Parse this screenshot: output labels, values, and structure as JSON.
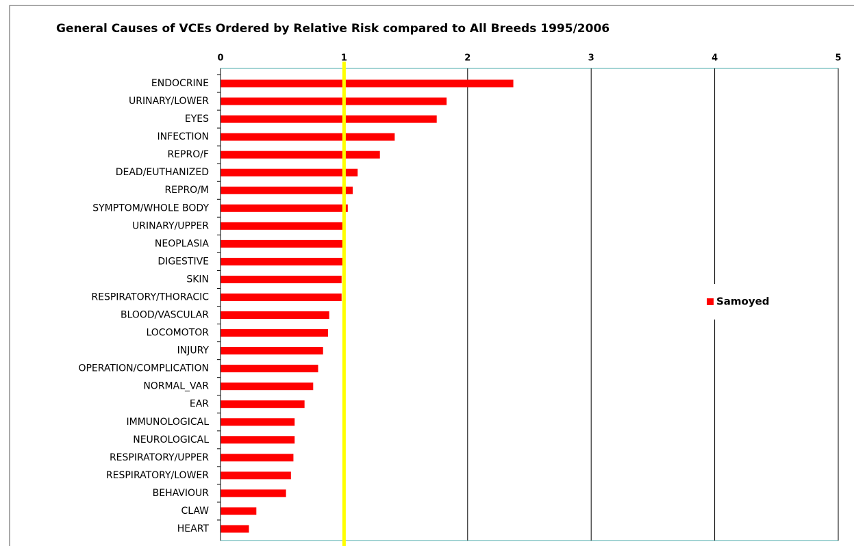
{
  "chart_data": {
    "type": "bar",
    "orientation": "horizontal",
    "title": "General Causes of VCEs Ordered by Relative Risk compared to All Breeds 1995/2006",
    "categories": [
      "ENDOCRINE",
      "URINARY/LOWER",
      "EYES",
      "INFECTION",
      "REPRO/F",
      "DEAD/EUTHANIZED",
      "REPRO/M",
      "SYMPTOM/WHOLE BODY",
      "URINARY/UPPER",
      "NEOPLASIA",
      "DIGESTIVE",
      "SKIN",
      "RESPIRATORY/THORACIC",
      "BLOOD/VASCULAR",
      "LOCOMOTOR",
      "INJURY",
      "OPERATION/COMPLICATION",
      "NORMAL_VAR",
      "EAR",
      "IMMUNOLOGICAL",
      "NEUROLOGICAL",
      "RESPIRATORY/UPPER",
      "RESPIRATORY/LOWER",
      "BEHAVIOUR",
      "CLAW",
      "HEART"
    ],
    "series": [
      {
        "name": "Samoyed",
        "color": "#ff0000",
        "values": [
          2.37,
          1.83,
          1.75,
          1.41,
          1.29,
          1.11,
          1.07,
          1.03,
          1.01,
          0.99,
          0.99,
          0.98,
          0.98,
          0.88,
          0.87,
          0.83,
          0.79,
          0.75,
          0.68,
          0.6,
          0.6,
          0.59,
          0.57,
          0.53,
          0.29,
          0.23
        ]
      }
    ],
    "xlim": [
      0,
      5
    ],
    "xticks": [
      0,
      1,
      2,
      3,
      4,
      5
    ],
    "grid": true,
    "reference_line": {
      "value": 1,
      "color": "#ffff00"
    },
    "legend": "right"
  }
}
